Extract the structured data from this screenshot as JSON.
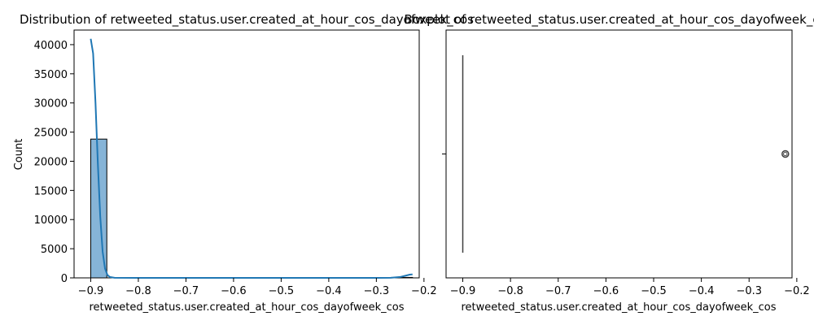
{
  "chart_data": [
    {
      "type": "bar",
      "title": "Distribution of retweeted_status.user.created_at_hour_cos_dayofweek_cos",
      "xlabel": "retweeted_status.user.created_at_hour_cos_dayofweek_cos",
      "ylabel": "Count",
      "xlim": [
        -0.935,
        -0.21
      ],
      "ylim": [
        0,
        42500
      ],
      "x_ticks": [
        -0.9,
        -0.8,
        -0.7,
        -0.6,
        -0.5,
        -0.4,
        -0.3,
        -0.2
      ],
      "x_tick_labels": [
        "−0.9",
        "−0.8",
        "−0.7",
        "−0.6",
        "−0.5",
        "−0.4",
        "−0.3",
        "−0.2"
      ],
      "y_ticks": [
        0,
        5000,
        10000,
        15000,
        20000,
        25000,
        30000,
        35000,
        40000
      ],
      "y_tick_labels": [
        "0",
        "5000",
        "10000",
        "15000",
        "20000",
        "25000",
        "30000",
        "35000",
        "40000"
      ],
      "bin_range": [
        -0.9,
        -0.224
      ],
      "bin_counts": [
        23800,
        0,
        0,
        0,
        0,
        0,
        0,
        0,
        0,
        0,
        0,
        0,
        0,
        0,
        0,
        0,
        0,
        0,
        0,
        80
      ],
      "kde": {
        "x": [
          -0.9,
          -0.895,
          -0.89,
          -0.885,
          -0.88,
          -0.875,
          -0.87,
          -0.865,
          -0.86,
          -0.85,
          -0.8,
          -0.7,
          -0.6,
          -0.5,
          -0.4,
          -0.3,
          -0.27,
          -0.25,
          -0.24,
          -0.23,
          -0.224
        ],
        "y": [
          41000,
          38500,
          30000,
          19500,
          10500,
          4500,
          1600,
          500,
          150,
          20,
          0,
          0,
          0,
          0,
          0,
          0,
          20,
          150,
          350,
          550,
          600
        ]
      },
      "color": "#1f77b4",
      "bar_fill": "#86b4d7"
    },
    {
      "type": "box",
      "title": "Boxplot of retweeted_status.user.created_at_hour_cos_dayofweek_cos",
      "xlabel": "retweeted_status.user.created_at_hour_cos_dayofweek_cos",
      "xlim": [
        -0.935,
        -0.21
      ],
      "x_ticks": [
        -0.9,
        -0.8,
        -0.7,
        -0.6,
        -0.5,
        -0.4,
        -0.3,
        -0.2
      ],
      "x_tick_labels": [
        "−0.9",
        "−0.8",
        "−0.7",
        "−0.6",
        "−0.5",
        "−0.4",
        "−0.3",
        "−0.2"
      ],
      "whisker_low": -0.9,
      "q1": -0.9,
      "median": -0.9,
      "q3": -0.9,
      "whisker_high": -0.9,
      "outliers": [
        -0.224
      ],
      "box_color": "#1f77b4",
      "line_color": "#3f3f3f"
    }
  ]
}
